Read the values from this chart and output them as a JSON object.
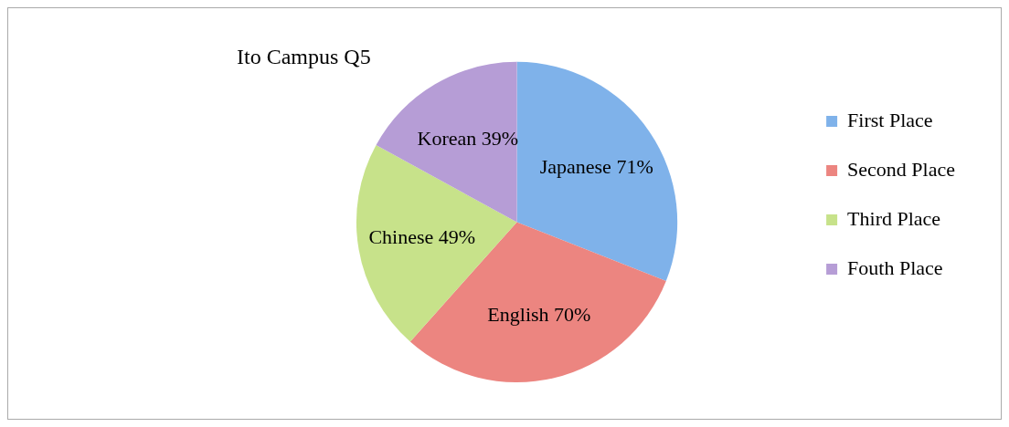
{
  "chart_data": {
    "type": "pie",
    "title": "Ito Campus Q5",
    "categories": [
      "First Place",
      "Second Place",
      "Third Place",
      "Fouth Place"
    ],
    "values": [
      71,
      70,
      49,
      39
    ],
    "value_labels": [
      "Japanese 71%",
      "English 70%",
      "Chinese 49%",
      "Korean 39%"
    ],
    "colors": [
      "#7fb2ea",
      "#ec8580",
      "#c7e28a",
      "#b69dd6"
    ],
    "legend": "right"
  }
}
